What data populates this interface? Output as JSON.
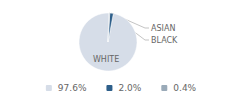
{
  "chart_data": {
    "type": "pie",
    "categories": [
      "WHITE",
      "ASIAN",
      "BLACK"
    ],
    "values": [
      97.6,
      2.0,
      0.4
    ],
    "value_labels": [
      "97.6%",
      "2.0%",
      "0.4%"
    ],
    "colors": [
      "#d6dde8",
      "#2e5f8a",
      "#9aaab8"
    ],
    "legend": "bottom"
  }
}
